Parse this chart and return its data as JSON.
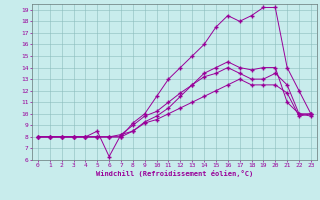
{
  "xlabel": "Windchill (Refroidissement éolien,°C)",
  "bg_color": "#c8ecec",
  "grid_color": "#aacccc",
  "line_color": "#990099",
  "xlim": [
    -0.5,
    23.5
  ],
  "ylim": [
    6.0,
    19.5
  ],
  "xticks": [
    0,
    1,
    2,
    3,
    4,
    5,
    6,
    7,
    8,
    9,
    10,
    11,
    12,
    13,
    14,
    15,
    16,
    17,
    18,
    19,
    20,
    21,
    22,
    23
  ],
  "yticks": [
    6,
    7,
    8,
    9,
    10,
    11,
    12,
    13,
    14,
    15,
    16,
    17,
    18,
    19
  ],
  "line1_x": [
    0,
    1,
    2,
    3,
    4,
    5,
    6,
    7,
    8,
    9,
    10,
    11,
    12,
    13,
    14,
    15,
    16,
    17,
    18,
    19,
    20,
    21,
    22,
    23
  ],
  "line1_y": [
    8,
    8,
    8,
    8,
    8,
    8.5,
    6.3,
    8.2,
    8.5,
    9.2,
    9.5,
    10.0,
    10.5,
    11.0,
    11.5,
    12.0,
    12.5,
    13.0,
    12.5,
    12.5,
    12.5,
    11.8,
    9.8,
    10.0
  ],
  "line2_x": [
    0,
    1,
    2,
    3,
    4,
    5,
    6,
    7,
    8,
    9,
    10,
    11,
    12,
    13,
    14,
    15,
    16,
    17,
    18,
    19,
    20,
    21,
    22,
    23
  ],
  "line2_y": [
    8,
    8,
    8,
    8,
    8,
    8,
    8,
    8.2,
    9.0,
    9.8,
    10.2,
    11.0,
    11.8,
    12.5,
    13.2,
    13.5,
    14.0,
    13.5,
    13.0,
    13.0,
    13.5,
    12.5,
    10.0,
    9.8
  ],
  "line3_x": [
    0,
    1,
    2,
    3,
    4,
    5,
    6,
    7,
    8,
    9,
    10,
    11,
    12,
    13,
    14,
    15,
    16,
    17,
    18,
    19,
    20,
    21,
    22,
    23
  ],
  "line3_y": [
    8,
    8,
    8,
    8,
    8,
    8,
    8,
    8,
    8.5,
    9.3,
    9.8,
    10.5,
    11.5,
    12.5,
    13.5,
    14.0,
    14.5,
    14.0,
    13.8,
    14.0,
    14.0,
    11.0,
    10.0,
    10.0
  ],
  "line4_x": [
    0,
    1,
    2,
    3,
    4,
    5,
    6,
    7,
    8,
    9,
    10,
    11,
    12,
    13,
    14,
    15,
    16,
    17,
    18,
    19,
    20,
    21,
    22,
    23
  ],
  "line4_y": [
    8,
    8,
    8,
    8,
    8,
    8,
    8,
    8,
    9.2,
    10.0,
    11.5,
    13.0,
    14.0,
    15.0,
    16.0,
    17.5,
    18.5,
    18.0,
    18.5,
    19.2,
    19.2,
    14.0,
    12.0,
    10.0
  ]
}
